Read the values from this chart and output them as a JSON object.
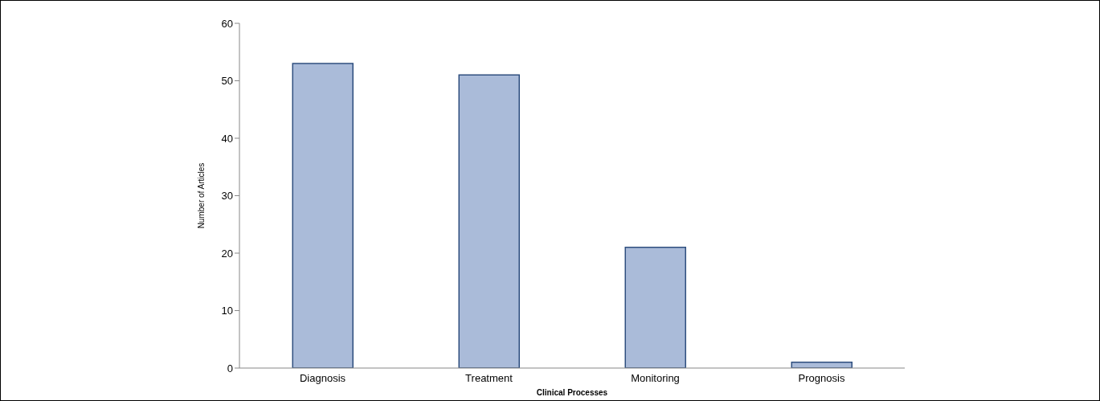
{
  "chart_data": {
    "type": "bar",
    "xlabel": "Clinical Processes",
    "ylabel": "Number of Articles",
    "categories": [
      "Diagnosis",
      "Treatment",
      "Monitoring",
      "Prognosis"
    ],
    "values": [
      53,
      51,
      21,
      1
    ],
    "color": "#aabbd9",
    "ylim": [
      0,
      60
    ],
    "yticks": [
      0,
      10,
      20,
      30,
      40,
      50,
      60
    ],
    "grid": false,
    "legend": false
  }
}
